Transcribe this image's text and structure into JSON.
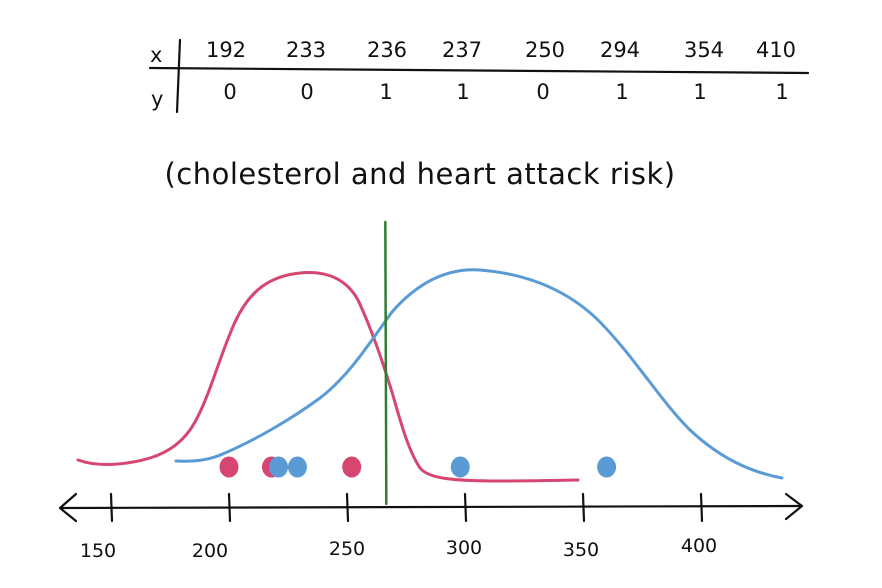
{
  "table": {
    "x_label": "x",
    "y_label": "y",
    "x_values": [
      "192",
      "233",
      "236",
      "237",
      "250",
      "294",
      "354",
      "410"
    ],
    "y_values": [
      "0",
      "0",
      "1",
      "1",
      "0",
      "1",
      "1",
      "1"
    ]
  },
  "caption": "(cholesterol and heart attack risk)",
  "axis": {
    "ticks": [
      "150",
      "200",
      "250",
      "300",
      "350",
      "400"
    ]
  },
  "colors": {
    "ink": "#111111",
    "no_risk": "#d64670",
    "risk": "#5b9bd5",
    "boundary": "#2e7d32"
  },
  "sketch": {
    "no_risk_points": [
      200,
      218,
      252
    ],
    "risk_points": [
      221,
      229,
      298,
      360
    ],
    "decision_boundary": 262
  }
}
